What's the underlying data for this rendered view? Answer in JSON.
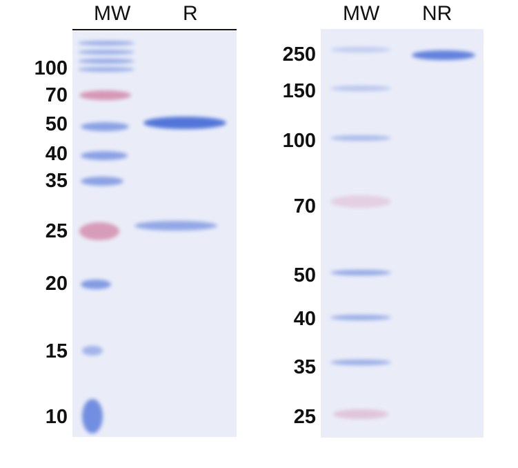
{
  "left_gel": {
    "lanes": [
      "MW",
      "R"
    ],
    "markers": [
      "100",
      "70",
      "50",
      "40",
      "35",
      "25",
      "20",
      "15",
      "10"
    ]
  },
  "right_gel": {
    "lanes": [
      "MW",
      "NR"
    ],
    "markers": [
      "250",
      "150",
      "100",
      "70",
      "50",
      "40",
      "35",
      "25"
    ]
  },
  "colors": {
    "gel_background": "#eaedf8",
    "band_blue": "#4a6fd8",
    "band_pink": "#d07aa0"
  }
}
